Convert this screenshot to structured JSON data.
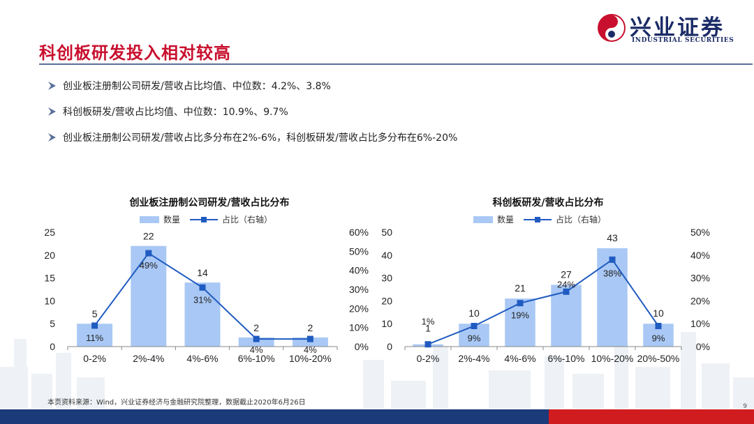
{
  "header": {
    "title": "科创板研发投入相对较高",
    "logo_cn": "兴业证券",
    "logo_en": "INDUSTRIAL SECURITIES"
  },
  "bullets": [
    "创业板注册制公司研发/营收占比均值、中位数：4.2%、3.8%",
    "科创板研发/营收占比均值、中位数：10.9%、9.7%",
    "创业板注册制公司研发/营收占比多分布在2%-6%，科创板研发/营收占比多分布在6%-20%"
  ],
  "colors": {
    "title": "#c8102e",
    "bar": "#a9c8f5",
    "line": "#1f5bc0",
    "footer_blue": "#1a3a7a",
    "footer_red": "#d01c1f",
    "logo": "#1a2b66"
  },
  "legend": {
    "bar_label": "数量",
    "line_label": "占比（右轴）"
  },
  "chart_data": [
    {
      "type": "bar",
      "title": "创业板注册制公司研发/营收占比分布",
      "categories": [
        "0-2%",
        "2%-4%",
        "4%-6%",
        "6%-10%",
        "10%-20%"
      ],
      "series": [
        {
          "name": "数量",
          "type": "bar",
          "axis": "left",
          "values": [
            5,
            22,
            14,
            2,
            2
          ],
          "labels": [
            "5",
            "22",
            "14",
            "2",
            "2"
          ]
        },
        {
          "name": "占比（右轴）",
          "type": "line",
          "axis": "right",
          "values": [
            11,
            49,
            31,
            4,
            4
          ],
          "labels": [
            "11%",
            "49%",
            "31%",
            "4%",
            "4%"
          ]
        }
      ],
      "y_left": {
        "min": 0,
        "max": 25,
        "ticks": [
          "0",
          "5",
          "10",
          "15",
          "20",
          "25"
        ]
      },
      "y_right": {
        "min": 0,
        "max": 60,
        "ticks": [
          "0%",
          "10%",
          "20%",
          "30%",
          "40%",
          "50%",
          "60%"
        ]
      },
      "legend": "top"
    },
    {
      "type": "bar",
      "title": "科创板研发/营收占比分布",
      "categories": [
        "0-2%",
        "2%-4%",
        "4%-6%",
        "6%-10%",
        "10%-20%",
        "20%-50%"
      ],
      "series": [
        {
          "name": "数量",
          "type": "bar",
          "axis": "left",
          "values": [
            1,
            10,
            21,
            27,
            43,
            10
          ],
          "labels": [
            "1",
            "10",
            "21",
            "27",
            "43",
            "10"
          ]
        },
        {
          "name": "占比（右轴）",
          "type": "line",
          "axis": "right",
          "values": [
            1,
            9,
            19,
            24,
            38,
            9
          ],
          "labels": [
            "1%",
            "9%",
            "19%",
            "24%",
            "38%",
            "9%"
          ]
        }
      ],
      "y_left": {
        "min": 0,
        "max": 50,
        "ticks": [
          "0",
          "10",
          "20",
          "30",
          "40",
          "50"
        ]
      },
      "y_right": {
        "min": 0,
        "max": 50,
        "ticks": [
          "0%",
          "10%",
          "20%",
          "30%",
          "40%",
          "50%"
        ]
      },
      "legend": "top"
    }
  ],
  "footnote": "本页资料来源：Wind，兴业证券经济与金融研究院整理，数据截止2020年6月26日",
  "page_number": "9"
}
